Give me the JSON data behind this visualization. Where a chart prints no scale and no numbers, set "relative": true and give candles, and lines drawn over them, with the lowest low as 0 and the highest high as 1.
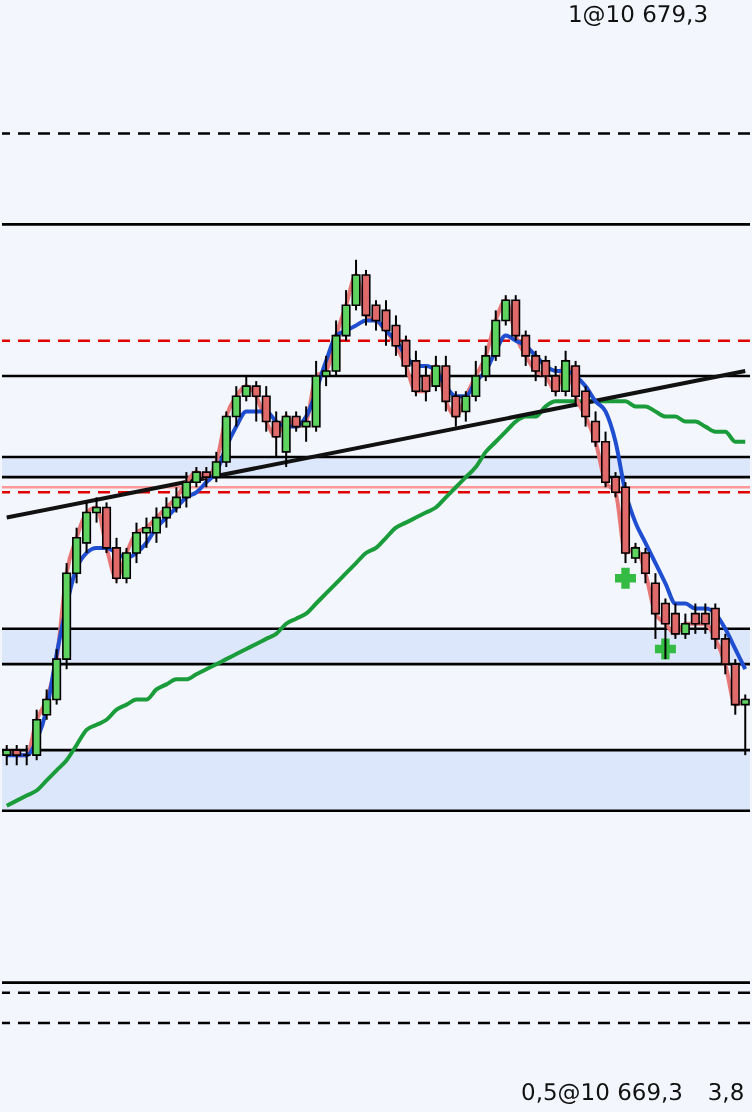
{
  "chart_data": {
    "type": "candlestick",
    "relative": true,
    "categories": [
      null,
      null,
      null,
      null,
      null,
      null,
      null,
      null,
      null,
      null,
      null,
      null,
      null,
      null,
      null,
      null,
      null,
      null,
      null,
      null,
      null,
      null,
      null,
      null,
      null,
      null,
      null,
      null,
      null,
      null,
      null,
      null,
      null,
      null,
      null,
      null,
      null,
      null,
      null,
      null,
      null,
      null,
      null,
      null,
      null,
      null,
      null,
      null,
      null,
      null,
      null,
      null,
      null,
      null,
      null,
      null,
      null,
      null,
      null,
      null,
      null,
      null,
      null,
      null,
      null,
      null,
      null,
      null,
      null,
      null,
      null,
      null,
      null,
      null,
      null
    ],
    "ohlc": [
      [
        0.02,
        0.04,
        0,
        0.03
      ],
      [
        0.03,
        0.04,
        0,
        0.02
      ],
      [
        0.02,
        0.04,
        0,
        0.02
      ],
      [
        0.02,
        0.11,
        0.01,
        0.09
      ],
      [
        0.1,
        0.15,
        0.09,
        0.13
      ],
      [
        0.13,
        0.23,
        0.12,
        0.21
      ],
      [
        0.21,
        0.4,
        0.19,
        0.38
      ],
      [
        0.38,
        0.47,
        0.36,
        0.45
      ],
      [
        0.44,
        0.52,
        0.42,
        0.5
      ],
      [
        0.5,
        0.53,
        0.48,
        0.51
      ],
      [
        0.51,
        0.52,
        0.42,
        0.43
      ],
      [
        0.43,
        0.45,
        0.36,
        0.37
      ],
      [
        0.37,
        0.43,
        0.36,
        0.42
      ],
      [
        0.42,
        0.48,
        0.4,
        0.46
      ],
      [
        0.46,
        0.49,
        0.43,
        0.47
      ],
      [
        0.46,
        0.51,
        0.44,
        0.49
      ],
      [
        0.49,
        0.53,
        0.47,
        0.51
      ],
      [
        0.51,
        0.55,
        0.5,
        0.53
      ],
      [
        0.53,
        0.58,
        0.51,
        0.56
      ],
      [
        0.56,
        0.59,
        0.55,
        0.58
      ],
      [
        0.58,
        0.59,
        0.55,
        0.57
      ],
      [
        0.57,
        0.62,
        0.56,
        0.6
      ],
      [
        0.6,
        0.7,
        0.59,
        0.69
      ],
      [
        0.69,
        0.75,
        0.67,
        0.73
      ],
      [
        0.73,
        0.77,
        0.72,
        0.75
      ],
      [
        0.75,
        0.76,
        0.68,
        0.73
      ],
      [
        0.73,
        0.75,
        0.66,
        0.68
      ],
      [
        0.68,
        0.7,
        0.61,
        0.65
      ],
      [
        0.62,
        0.7,
        0.59,
        0.69
      ],
      [
        0.69,
        0.7,
        0.66,
        0.67
      ],
      [
        0.67,
        0.71,
        0.64,
        0.68
      ],
      [
        0.67,
        0.8,
        0.66,
        0.77
      ],
      [
        0.77,
        0.81,
        0.75,
        0.78
      ],
      [
        0.78,
        0.88,
        0.77,
        0.85
      ],
      [
        0.85,
        0.94,
        0.84,
        0.91
      ],
      [
        0.91,
        1,
        0.9,
        0.97
      ],
      [
        0.97,
        0.98,
        0.87,
        0.89
      ],
      [
        0.91,
        0.92,
        0.86,
        0.88
      ],
      [
        0.9,
        0.92,
        0.83,
        0.86
      ],
      [
        0.87,
        0.89,
        0.81,
        0.83
      ],
      [
        0.84,
        0.85,
        0.77,
        0.79
      ],
      [
        0.8,
        0.82,
        0.73,
        0.74
      ],
      [
        0.77,
        0.79,
        0.72,
        0.74
      ],
      [
        0.75,
        0.81,
        0.74,
        0.79
      ],
      [
        0.79,
        0.81,
        0.7,
        0.72
      ],
      [
        0.73,
        0.74,
        0.67,
        0.69
      ],
      [
        0.7,
        0.74,
        0.68,
        0.73
      ],
      [
        0.73,
        0.8,
        0.72,
        0.77
      ],
      [
        0.77,
        0.83,
        0.76,
        0.81
      ],
      [
        0.81,
        0.9,
        0.8,
        0.88
      ],
      [
        0.88,
        0.93,
        0.87,
        0.92
      ],
      [
        0.92,
        0.93,
        0.84,
        0.85
      ],
      [
        0.85,
        0.86,
        0.79,
        0.81
      ],
      [
        0.81,
        0.82,
        0.76,
        0.78
      ],
      [
        0.8,
        0.81,
        0.75,
        0.77
      ],
      [
        0.77,
        0.79,
        0.73,
        0.74
      ],
      [
        0.74,
        0.82,
        0.73,
        0.8
      ],
      [
        0.79,
        0.8,
        0.71,
        0.73
      ],
      [
        0.74,
        0.75,
        0.67,
        0.69
      ],
      [
        0.68,
        0.7,
        0.63,
        0.64
      ],
      [
        0.64,
        0.66,
        0.55,
        0.56
      ],
      [
        0.57,
        0.58,
        0.53,
        0.54
      ],
      [
        0.55,
        0.56,
        0.4,
        0.42
      ],
      [
        0.41,
        0.44,
        0.4,
        0.43
      ],
      [
        0.42,
        0.43,
        0.36,
        0.38
      ],
      [
        0.36,
        0.38,
        0.25,
        0.3
      ],
      [
        0.32,
        0.33,
        0.21,
        0.28
      ],
      [
        0.3,
        0.32,
        0.25,
        0.26
      ],
      [
        0.26,
        0.3,
        0.25,
        0.28
      ],
      [
        0.3,
        0.32,
        0.26,
        0.28
      ],
      [
        0.3,
        0.32,
        0.26,
        0.28
      ],
      [
        0.31,
        0.32,
        0.23,
        0.25
      ],
      [
        0.25,
        0.26,
        0.18,
        0.2
      ],
      [
        0.2,
        0.21,
        0.1,
        0.12
      ],
      [
        0.12,
        0.14,
        0.02,
        0.13
      ]
    ],
    "series": [
      {
        "type": "line",
        "color": "#1a9c3a",
        "values": [
          -0.08,
          -0.07,
          -0.06,
          -0.05,
          -0.03,
          -0.01,
          0.01,
          0.04,
          0.07,
          0.08,
          0.09,
          0.11,
          0.12,
          0.13,
          0.13,
          0.15,
          0.16,
          0.17,
          0.17,
          0.18,
          0.19,
          0.2,
          0.21,
          0.22,
          0.23,
          0.24,
          0.25,
          0.26,
          0.28,
          0.29,
          0.3,
          0.32,
          0.34,
          0.36,
          0.38,
          0.4,
          0.42,
          0.43,
          0.45,
          0.47,
          0.48,
          0.49,
          0.5,
          0.51,
          0.53,
          0.55,
          0.57,
          0.59,
          0.62,
          0.64,
          0.66,
          0.68,
          0.69,
          0.69,
          0.71,
          0.72,
          0.72,
          0.72,
          0.72,
          0.72,
          0.72,
          0.72,
          0.72,
          0.71,
          0.71,
          0.7,
          0.69,
          0.69,
          0.68,
          0.68,
          0.67,
          0.66,
          0.66,
          0.64,
          0.64
        ]
      },
      {
        "type": "line",
        "color": "#111111",
        "values": [
          0.49,
          null,
          null,
          null,
          null,
          null,
          null,
          null,
          null,
          null,
          null,
          null,
          null,
          null,
          null,
          null,
          null,
          null,
          null,
          null,
          null,
          null,
          null,
          null,
          null,
          null,
          null,
          null,
          null,
          null,
          null,
          null,
          null,
          null,
          null,
          null,
          null,
          null,
          null,
          null,
          null,
          null,
          null,
          null,
          null,
          null,
          null,
          null,
          null,
          null,
          null,
          null,
          null,
          null,
          null,
          null,
          null,
          null,
          null,
          null,
          null,
          null,
          null,
          null,
          null,
          null,
          null,
          null,
          null,
          null,
          null,
          null,
          null,
          null,
          0.78
        ]
      },
      {
        "type": "line",
        "color": "#e87878",
        "values": [
          0.03,
          0.02,
          0.02,
          0.09,
          0.13,
          0.21,
          0.38,
          0.45,
          0.5,
          0.51,
          0.43,
          0.37,
          0.42,
          0.46,
          0.47,
          0.49,
          0.51,
          0.53,
          0.56,
          0.58,
          0.57,
          0.6,
          0.69,
          0.73,
          0.75,
          0.73,
          0.68,
          0.65,
          0.69,
          0.67,
          0.68,
          0.77,
          0.78,
          0.85,
          0.91,
          0.97,
          0.89,
          0.88,
          0.86,
          0.83,
          0.79,
          0.74,
          0.74,
          0.79,
          0.72,
          0.69,
          0.73,
          0.77,
          0.81,
          0.88,
          0.92,
          0.85,
          0.81,
          0.78,
          0.77,
          0.74,
          0.8,
          0.73,
          0.69,
          0.64,
          0.56,
          0.54,
          0.42,
          0.43,
          0.38,
          0.3,
          0.28,
          0.26,
          0.28,
          0.28,
          0.28,
          0.25,
          0.2,
          0.12,
          0.13
        ]
      },
      {
        "type": "line",
        "color": "#1f4fd0",
        "values": [
          0.02,
          0.02,
          0.02,
          0.05,
          0.11,
          0.22,
          null,
          0.39,
          0.42,
          0.43,
          0.43,
          0.42,
          0.41,
          0.42,
          0.44,
          0.47,
          0.49,
          0.51,
          0.53,
          0.54,
          0.56,
          0.58,
          0.63,
          0.67,
          0.7,
          0.7,
          0.7,
          0.68,
          0.67,
          0.67,
          0.69,
          null,
          0.8,
          0.85,
          0.86,
          0.87,
          0.88,
          0.88,
          0.86,
          0.84,
          0.81,
          0.79,
          0.79,
          0.78,
          0.75,
          0.73,
          0.73,
          0.76,
          0.78,
          0.82,
          0.85,
          0.84,
          0.83,
          0.81,
          0.79,
          0.78,
          0.78,
          0.77,
          0.75,
          0.72,
          0.7,
          0.64,
          0.54,
          0.48,
          0.44,
          0.4,
          0.36,
          0.32,
          0.32,
          0.31,
          0.31,
          0.3,
          0.27,
          0.23,
          0.19
        ]
      },
      {
        "type": "scatter",
        "marker": "cross",
        "color": "#33bb44",
        "values": [
          null,
          null,
          null,
          null,
          null,
          null,
          null,
          null,
          null,
          null,
          null,
          null,
          null,
          null,
          null,
          null,
          null,
          null,
          null,
          null,
          null,
          null,
          null,
          null,
          null,
          null,
          null,
          null,
          null,
          null,
          null,
          null,
          null,
          null,
          null,
          null,
          null,
          null,
          null,
          null,
          null,
          null,
          null,
          null,
          null,
          null,
          null,
          null,
          null,
          null,
          null,
          null,
          null,
          null,
          null,
          null,
          null,
          null,
          null,
          null,
          null,
          null,
          0.37,
          null,
          null,
          null,
          0.23,
          null,
          null,
          null,
          null,
          null,
          null,
          null,
          null
        ]
      }
    ],
    "bands": [
      {
        "axis": "y",
        "from": 0.2,
        "to": 0.27,
        "color": "#dde7fb"
      },
      {
        "axis": "y",
        "from": -0.09,
        "to": 0.03,
        "color": "#dde7fb"
      },
      {
        "axis": "y",
        "from": 0.57,
        "to": 0.61,
        "color": "#dde7fb"
      }
    ],
    "ref_lines": [
      {
        "axis": "y",
        "value": 1.25,
        "color": "#000000",
        "line_style": "dashed"
      },
      {
        "axis": "y",
        "value": 1.07,
        "color": "#000000",
        "line_style": "solid"
      },
      {
        "axis": "y",
        "value": 0.84,
        "color": "#e00000",
        "line_style": "dashed"
      },
      {
        "axis": "y",
        "value": 0.77,
        "color": "#000000",
        "line_style": "solid"
      },
      {
        "axis": "y",
        "value": 0.61,
        "color": "#000000",
        "line_style": "solid"
      },
      {
        "axis": "y",
        "value": 0.57,
        "color": "#000000",
        "line_style": "solid"
      },
      {
        "axis": "y",
        "value": 0.55,
        "color": "#ff9999",
        "line_style": "solid"
      },
      {
        "axis": "y",
        "value": 0.54,
        "color": "#e00000",
        "line_style": "dashed"
      },
      {
        "axis": "y",
        "value": 0.27,
        "color": "#000000",
        "line_style": "solid"
      },
      {
        "axis": "y",
        "value": 0.2,
        "color": "#000000",
        "line_style": "solid"
      },
      {
        "axis": "y",
        "value": 0.03,
        "color": "#000000",
        "line_style": "solid"
      },
      {
        "axis": "y",
        "value": -0.09,
        "color": "#000000",
        "line_style": "solid"
      },
      {
        "axis": "y",
        "value": -0.43,
        "color": "#000000",
        "line_style": "solid"
      },
      {
        "axis": "y",
        "value": -0.45,
        "color": "#000000",
        "line_style": "dashed"
      },
      {
        "axis": "y",
        "value": -0.51,
        "color": "#000000",
        "line_style": "dashed"
      }
    ],
    "annotations": [
      "1@10 679,3",
      "0,5@10 669,3",
      "3,8"
    ]
  }
}
